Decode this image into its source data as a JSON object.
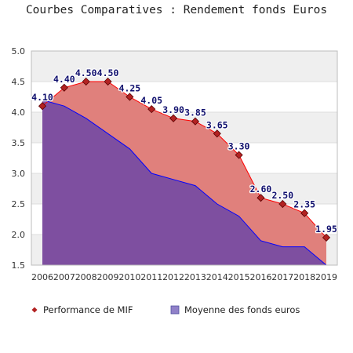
{
  "chart_data": {
    "type": "area",
    "title": "Courbes Comparatives : Rendement fonds Euros",
    "xlabel": "",
    "ylabel": "",
    "x": [
      "2006",
      "2007",
      "2008",
      "2009",
      "2010",
      "2011",
      "2012",
      "2013",
      "2014",
      "2015",
      "2016",
      "2017",
      "2018",
      "2019"
    ],
    "ylim": [
      1.5,
      5.0
    ],
    "yticks": [
      "1.5",
      "2.0",
      "2.5",
      "3.0",
      "3.5",
      "4.0",
      "4.5",
      "5.0"
    ],
    "grid": "horizontal bands",
    "legend_position": "bottom",
    "colors": {
      "mif_fill": "#e0807c",
      "mif_line": "#ff0000",
      "mif_marker": "#b22222",
      "avg_fill": "#7e4fa0",
      "avg_line": "#0000ff",
      "band": "#efefef",
      "label": "#10106e"
    },
    "series": [
      {
        "name": "Performance de MIF",
        "values": [
          4.1,
          4.4,
          4.5,
          4.5,
          4.25,
          4.05,
          3.9,
          3.85,
          3.65,
          3.3,
          2.6,
          2.5,
          2.35,
          1.95
        ],
        "labels": [
          "4.10",
          "4.40",
          "4.50",
          "4.50",
          "4.25",
          "4.05",
          "3.90",
          "3.85",
          "3.65",
          "3.30",
          "2.60",
          "2.50",
          "2.35",
          "1.95"
        ]
      },
      {
        "name": "Moyenne des fonds euros",
        "values": [
          4.2,
          4.1,
          3.9,
          3.65,
          3.4,
          3.0,
          2.9,
          2.8,
          2.5,
          2.3,
          1.9,
          1.8,
          1.8,
          1.5
        ]
      }
    ]
  }
}
